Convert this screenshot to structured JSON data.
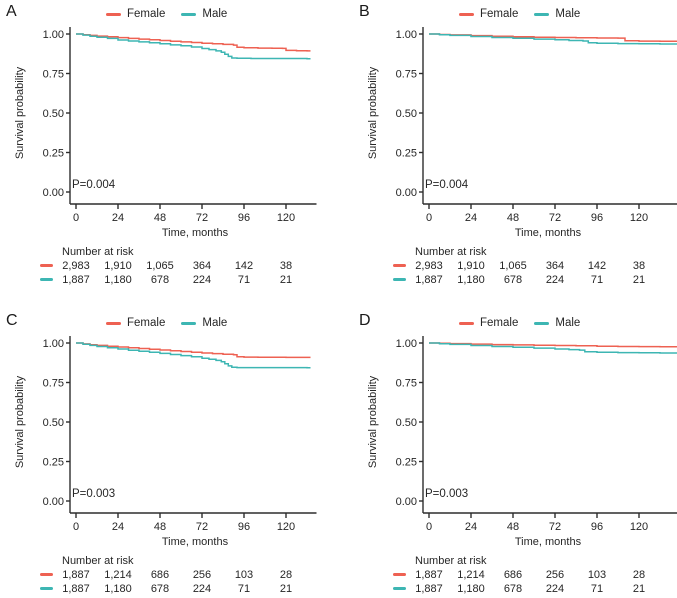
{
  "legend": {
    "female": "Female",
    "male": "Male"
  },
  "axes": {
    "y_label": "Survival probability",
    "x_label": "Time, months",
    "y_ticks": [
      "1.00",
      "0.75",
      "0.50",
      "0.25",
      "0.00"
    ],
    "x_ticks": [
      "0",
      "24",
      "48",
      "72",
      "96",
      "120"
    ],
    "x_range": [
      0,
      132
    ],
    "y_range": [
      0,
      1
    ],
    "grid": false,
    "legend_position": "top"
  },
  "risk_header": "Number at risk",
  "colors": {
    "female": "#ee6152",
    "male": "#3db6b3",
    "axis": "#2d2d2d",
    "text": "#262626",
    "background": "#ffffff"
  },
  "chart_data": [
    {
      "panel": "A",
      "type": "line",
      "subtype": "kaplan-meier-step",
      "p_label": "P=0.004",
      "x_end": 134,
      "series": [
        {
          "name": "Female",
          "color_key": "female",
          "points": [
            [
              0,
              1.0
            ],
            [
              4,
              0.995
            ],
            [
              8,
              0.991
            ],
            [
              12,
              0.987
            ],
            [
              18,
              0.982
            ],
            [
              24,
              0.977
            ],
            [
              30,
              0.972
            ],
            [
              36,
              0.968
            ],
            [
              42,
              0.963
            ],
            [
              48,
              0.959
            ],
            [
              54,
              0.954
            ],
            [
              60,
              0.95
            ],
            [
              66,
              0.946
            ],
            [
              72,
              0.942
            ],
            [
              78,
              0.938
            ],
            [
              84,
              0.934
            ],
            [
              90,
              0.93
            ],
            [
              92,
              0.916
            ],
            [
              96,
              0.913
            ],
            [
              104,
              0.911
            ],
            [
              112,
              0.91
            ],
            [
              118,
              0.909
            ],
            [
              120,
              0.896
            ],
            [
              126,
              0.894
            ],
            [
              132,
              0.893
            ]
          ]
        },
        {
          "name": "Male",
          "color_key": "male",
          "points": [
            [
              0,
              1.0
            ],
            [
              4,
              0.993
            ],
            [
              8,
              0.986
            ],
            [
              12,
              0.98
            ],
            [
              18,
              0.972
            ],
            [
              24,
              0.962
            ],
            [
              30,
              0.956
            ],
            [
              36,
              0.95
            ],
            [
              42,
              0.944
            ],
            [
              48,
              0.938
            ],
            [
              54,
              0.931
            ],
            [
              60,
              0.925
            ],
            [
              66,
              0.918
            ],
            [
              72,
              0.908
            ],
            [
              76,
              0.901
            ],
            [
              80,
              0.893
            ],
            [
              83,
              0.884
            ],
            [
              85,
              0.872
            ],
            [
              87,
              0.858
            ],
            [
              89,
              0.848
            ],
            [
              92,
              0.846
            ],
            [
              100,
              0.845
            ],
            [
              132,
              0.843
            ]
          ]
        }
      ],
      "risk": {
        "female": [
          "2,983",
          "1,910",
          "1,065",
          "364",
          "142",
          "38"
        ],
        "male": [
          "1,887",
          "1,180",
          "678",
          "224",
          "71",
          "21"
        ]
      }
    },
    {
      "panel": "B",
      "type": "line",
      "subtype": "kaplan-meier-step",
      "p_label": "P=0.004",
      "x_end": 144,
      "series": [
        {
          "name": "Female",
          "color_key": "female",
          "points": [
            [
              0,
              1.0
            ],
            [
              6,
              0.997
            ],
            [
              12,
              0.994
            ],
            [
              24,
              0.99
            ],
            [
              36,
              0.986
            ],
            [
              48,
              0.983
            ],
            [
              60,
              0.98
            ],
            [
              72,
              0.978
            ],
            [
              84,
              0.976
            ],
            [
              96,
              0.975
            ],
            [
              108,
              0.974
            ],
            [
              112,
              0.957
            ],
            [
              120,
              0.955
            ],
            [
              132,
              0.954
            ]
          ]
        },
        {
          "name": "Male",
          "color_key": "male",
          "points": [
            [
              0,
              1.0
            ],
            [
              6,
              0.995
            ],
            [
              12,
              0.991
            ],
            [
              24,
              0.984
            ],
            [
              36,
              0.978
            ],
            [
              48,
              0.973
            ],
            [
              60,
              0.968
            ],
            [
              72,
              0.963
            ],
            [
              80,
              0.959
            ],
            [
              88,
              0.956
            ],
            [
              91,
              0.944
            ],
            [
              96,
              0.941
            ],
            [
              108,
              0.939
            ],
            [
              120,
              0.938
            ],
            [
              132,
              0.937
            ]
          ]
        }
      ],
      "risk": {
        "female": [
          "2,983",
          "1,910",
          "1,065",
          "364",
          "142",
          "38"
        ],
        "male": [
          "1,887",
          "1,180",
          "678",
          "224",
          "71",
          "21"
        ]
      }
    },
    {
      "panel": "C",
      "type": "line",
      "subtype": "kaplan-meier-step",
      "p_label": "P=0.003",
      "x_end": 134,
      "series": [
        {
          "name": "Female",
          "color_key": "female",
          "points": [
            [
              0,
              1.0
            ],
            [
              4,
              0.994
            ],
            [
              8,
              0.989
            ],
            [
              12,
              0.985
            ],
            [
              18,
              0.98
            ],
            [
              24,
              0.975
            ],
            [
              30,
              0.97
            ],
            [
              36,
              0.965
            ],
            [
              42,
              0.96
            ],
            [
              48,
              0.956
            ],
            [
              54,
              0.951
            ],
            [
              60,
              0.946
            ],
            [
              66,
              0.941
            ],
            [
              72,
              0.937
            ],
            [
              78,
              0.933
            ],
            [
              84,
              0.929
            ],
            [
              90,
              0.925
            ],
            [
              92,
              0.913
            ],
            [
              96,
              0.911
            ],
            [
              104,
              0.91
            ],
            [
              120,
              0.909
            ],
            [
              132,
              0.909
            ]
          ]
        },
        {
          "name": "Male",
          "color_key": "male",
          "points": [
            [
              0,
              1.0
            ],
            [
              4,
              0.992
            ],
            [
              8,
              0.985
            ],
            [
              12,
              0.978
            ],
            [
              18,
              0.97
            ],
            [
              24,
              0.962
            ],
            [
              30,
              0.954
            ],
            [
              36,
              0.948
            ],
            [
              42,
              0.941
            ],
            [
              48,
              0.934
            ],
            [
              54,
              0.927
            ],
            [
              60,
              0.92
            ],
            [
              66,
              0.913
            ],
            [
              72,
              0.904
            ],
            [
              76,
              0.897
            ],
            [
              80,
              0.89
            ],
            [
              83,
              0.881
            ],
            [
              85,
              0.869
            ],
            [
              87,
              0.855
            ],
            [
              89,
              0.846
            ],
            [
              92,
              0.844
            ],
            [
              132,
              0.843
            ]
          ]
        }
      ],
      "risk": {
        "female": [
          "1,887",
          "1,214",
          "686",
          "256",
          "103",
          "28"
        ],
        "male": [
          "1,887",
          "1,180",
          "678",
          "224",
          "71",
          "21"
        ]
      }
    },
    {
      "panel": "D",
      "type": "line",
      "subtype": "kaplan-meier-step",
      "p_label": "P=0.003",
      "x_end": 144,
      "series": [
        {
          "name": "Female",
          "color_key": "female",
          "points": [
            [
              0,
              1.0
            ],
            [
              6,
              0.998
            ],
            [
              12,
              0.996
            ],
            [
              24,
              0.993
            ],
            [
              36,
              0.99
            ],
            [
              48,
              0.988
            ],
            [
              60,
              0.986
            ],
            [
              72,
              0.984
            ],
            [
              84,
              0.982
            ],
            [
              96,
              0.98
            ],
            [
              108,
              0.978
            ],
            [
              120,
              0.977
            ],
            [
              132,
              0.976
            ]
          ]
        },
        {
          "name": "Male",
          "color_key": "male",
          "points": [
            [
              0,
              1.0
            ],
            [
              6,
              0.995
            ],
            [
              12,
              0.991
            ],
            [
              24,
              0.984
            ],
            [
              36,
              0.978
            ],
            [
              48,
              0.973
            ],
            [
              60,
              0.968
            ],
            [
              72,
              0.962
            ],
            [
              80,
              0.958
            ],
            [
              86,
              0.955
            ],
            [
              89,
              0.944
            ],
            [
              96,
              0.941
            ],
            [
              108,
              0.939
            ],
            [
              120,
              0.938
            ],
            [
              132,
              0.937
            ]
          ]
        }
      ],
      "risk": {
        "female": [
          "1,887",
          "1,214",
          "686",
          "256",
          "103",
          "28"
        ],
        "male": [
          "1,887",
          "1,180",
          "678",
          "224",
          "71",
          "21"
        ]
      }
    }
  ]
}
